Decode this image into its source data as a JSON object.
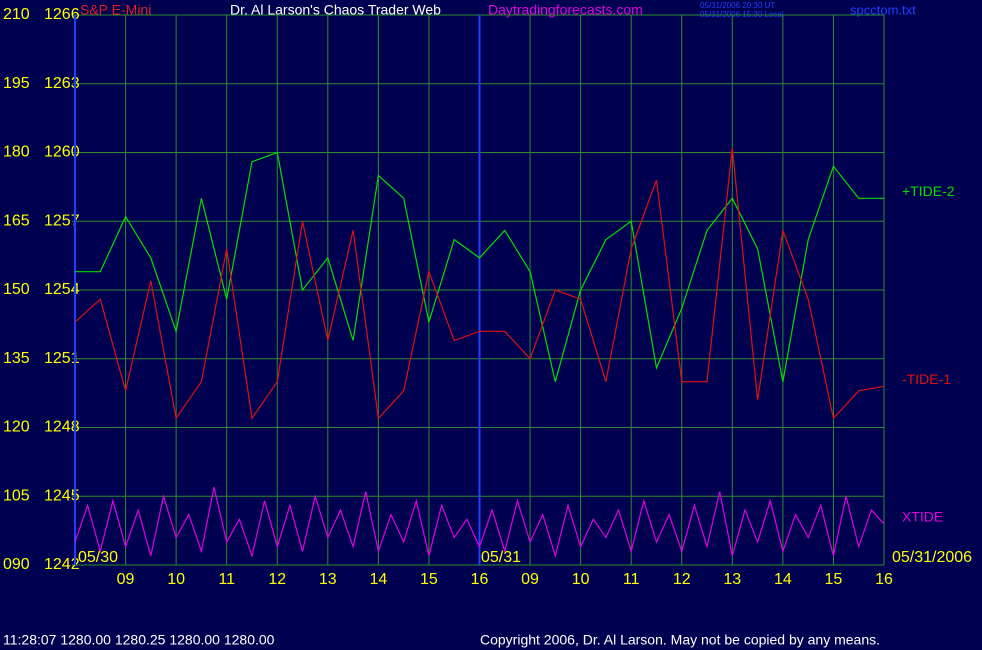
{
  "chart_data": {
    "type": "line",
    "header": {
      "symbol": "S&P E-Mini",
      "title": "Dr. Al Larson's Chaos Trader Web",
      "site": "Daytradingforecasts.com",
      "time_ut": "05/31/2006 20:30 UT",
      "time_local": "05/31/2006 15:30 Local",
      "file": "spcctom.txt"
    },
    "status": "11:28:07  1280.00 1280.25 1280.00 1280.00",
    "copyright": "Copyright 2006, Dr. Al Larson. May not be copied by any means.",
    "date_labels": [
      "05/30",
      "05/31",
      "05/31/2006"
    ],
    "grid": true,
    "xlim": [
      0,
      16
    ],
    "xticks": [
      {
        "value": 1,
        "label": "09"
      },
      {
        "value": 2,
        "label": "10"
      },
      {
        "value": 3,
        "label": "11"
      },
      {
        "value": 4,
        "label": "12"
      },
      {
        "value": 5,
        "label": "13"
      },
      {
        "value": 6,
        "label": "14"
      },
      {
        "value": 7,
        "label": "15"
      },
      {
        "value": 8,
        "label": "16"
      },
      {
        "value": 9,
        "label": "09"
      },
      {
        "value": 10,
        "label": "10"
      },
      {
        "value": 11,
        "label": "11"
      },
      {
        "value": 12,
        "label": "12"
      },
      {
        "value": 13,
        "label": "13"
      },
      {
        "value": 14,
        "label": "14"
      },
      {
        "value": 15,
        "label": "15"
      },
      {
        "value": 16,
        "label": "16"
      }
    ],
    "ylim": [
      90,
      210
    ],
    "yticks": [
      {
        "value": 90,
        "label": "090"
      },
      105,
      120,
      135,
      150,
      165,
      180,
      195,
      210
    ],
    "y2lim": [
      1242,
      1266
    ],
    "y2ticks": [
      1242,
      1245,
      1248,
      1251,
      1254,
      1257,
      1260,
      1263,
      1266
    ],
    "x": [
      0,
      0.5,
      1,
      1.5,
      2,
      2.5,
      3,
      3.5,
      4,
      4.5,
      5,
      5.5,
      6,
      6.5,
      7,
      7.5,
      8,
      8.5,
      9,
      9.5,
      10,
      10.5,
      11,
      11.5,
      12,
      12.5,
      13,
      13.5,
      14,
      14.5,
      15,
      15.5,
      16
    ],
    "series": [
      {
        "name": "+TIDE-2",
        "color": "#00e000",
        "values": [
          154,
          154,
          166,
          157,
          141,
          170,
          148,
          178,
          180,
          150,
          157,
          139,
          175,
          170,
          143,
          161,
          157,
          163,
          154,
          130,
          150,
          161,
          165,
          133,
          146,
          163,
          170,
          159,
          130,
          161,
          177,
          170,
          170
        ]
      },
      {
        "name": "-TIDE-1",
        "color": "#e01010",
        "values": [
          143,
          148,
          128,
          152,
          122,
          130,
          159,
          122,
          130,
          165,
          139,
          163,
          122,
          128,
          154,
          139,
          141,
          141,
          135,
          150,
          148,
          130,
          159,
          174,
          130,
          130,
          181,
          126,
          163,
          148,
          122,
          128,
          129
        ]
      },
      {
        "name": "XTIDE",
        "color": "#e000e0",
        "x": [
          0,
          0.25,
          0.5,
          0.75,
          1,
          1.25,
          1.5,
          1.75,
          2,
          2.25,
          2.5,
          2.75,
          3,
          3.25,
          3.5,
          3.75,
          4,
          4.25,
          4.5,
          4.75,
          5,
          5.25,
          5.5,
          5.75,
          6,
          6.25,
          6.5,
          6.75,
          7,
          7.25,
          7.5,
          7.75,
          8,
          8.25,
          8.5,
          8.75,
          9,
          9.25,
          9.5,
          9.75,
          10,
          10.25,
          10.5,
          10.75,
          11,
          11.25,
          11.5,
          11.75,
          12,
          12.25,
          12.5,
          12.75,
          13,
          13.25,
          13.5,
          13.75,
          14,
          14.25,
          14.5,
          14.75,
          15,
          15.25,
          15.5,
          15.75,
          16
        ],
        "values": [
          95,
          103,
          93,
          104,
          94,
          102,
          92,
          105,
          96,
          101,
          93,
          107,
          95,
          100,
          92,
          104,
          94,
          103,
          93,
          105,
          96,
          102,
          94,
          106,
          93,
          101,
          95,
          104,
          92,
          103,
          96,
          100,
          94,
          102,
          93,
          104,
          95,
          101,
          92,
          103,
          94,
          100,
          96,
          102,
          93,
          104,
          95,
          101,
          93,
          103,
          94,
          106,
          92,
          102,
          95,
          104,
          93,
          101,
          96,
          103,
          92,
          105,
          94,
          102,
          99
        ]
      }
    ]
  }
}
